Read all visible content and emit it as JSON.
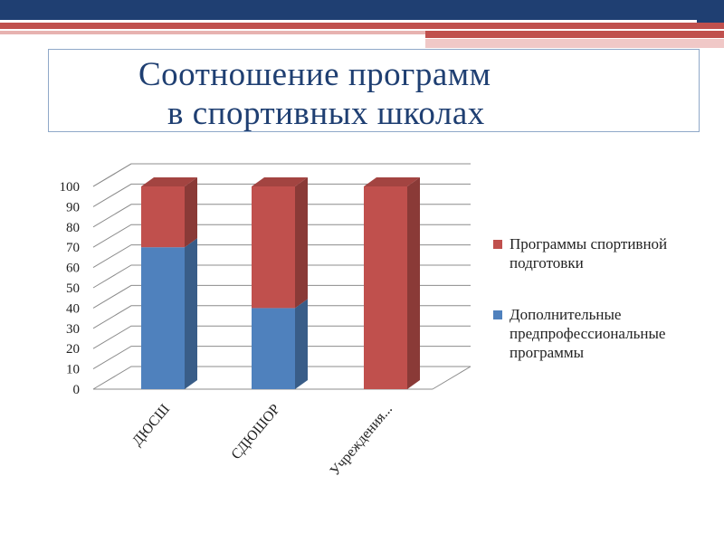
{
  "slide": {
    "title_line1": "Соотношение программ",
    "title_line2": "в спортивных школах"
  },
  "colors": {
    "navy": "#1f3f72",
    "accent_red": "#c0504d",
    "series_red": "#c0504d",
    "series_blue": "#4f81bd"
  },
  "chart_data": {
    "type": "bar",
    "stacked": true,
    "three_d": true,
    "categories": [
      "ДЮСШ",
      "СДЮШОР",
      "Учреждения..."
    ],
    "series": [
      {
        "name": "Дополнительные предпрофессиональные программы",
        "color": "#4f81bd",
        "values": [
          70,
          40,
          0
        ]
      },
      {
        "name": "Программы спортивной подготовки",
        "color": "#c0504d",
        "values": [
          30,
          60,
          100
        ]
      }
    ],
    "yticks": [
      0,
      10,
      20,
      30,
      40,
      50,
      60,
      70,
      80,
      90,
      100
    ],
    "ylim": [
      0,
      100
    ],
    "grid": true,
    "legend_position": "right",
    "legend_entries": [
      {
        "series": 1,
        "lines": [
          "Программы спортивной",
          "подготовки"
        ]
      },
      {
        "series": 0,
        "lines": [
          "Дополнительные",
          "предпрофессиональные",
          "программы"
        ]
      }
    ]
  }
}
